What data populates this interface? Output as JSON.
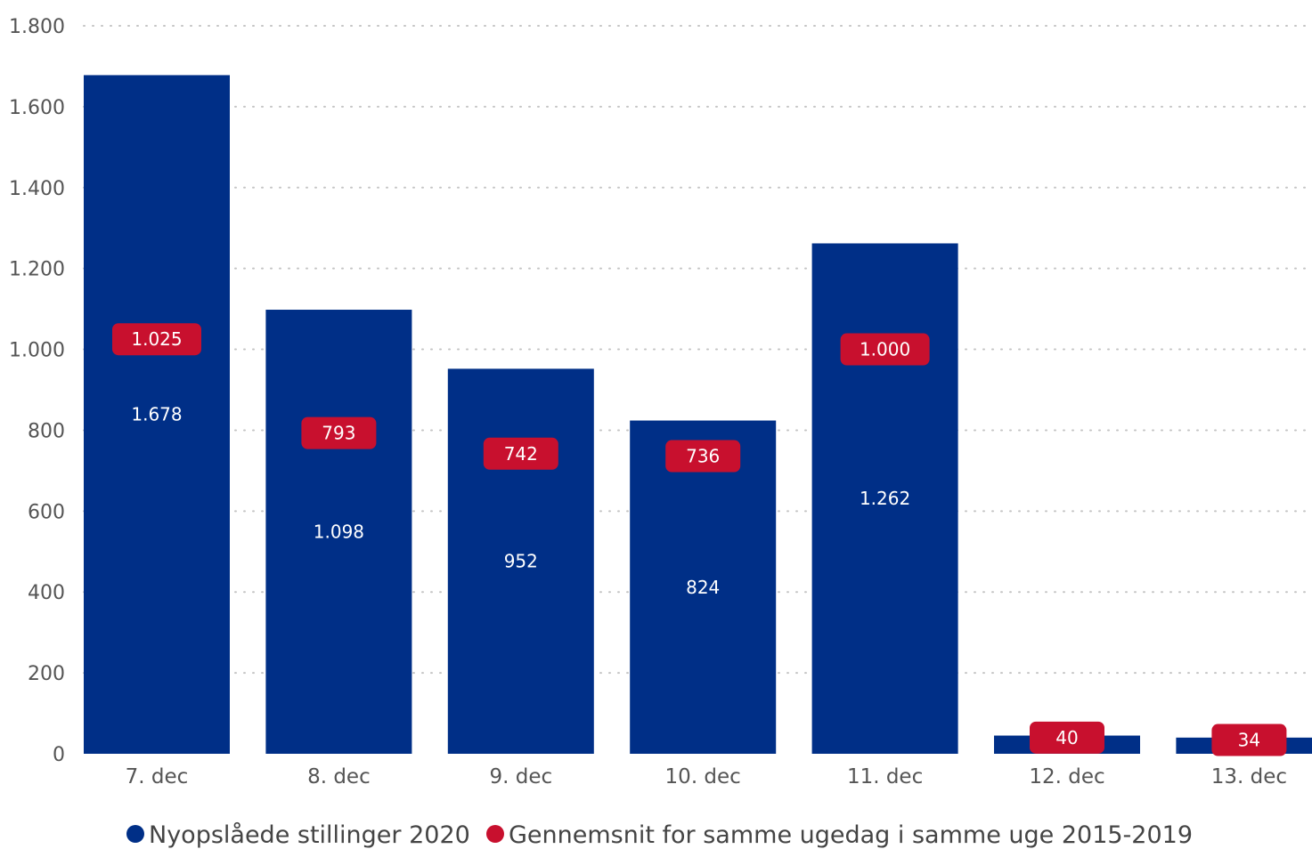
{
  "chart_data": {
    "type": "bar",
    "categories": [
      "7. dec",
      "8. dec",
      "9. dec",
      "10. dec",
      "11. dec",
      "12. dec",
      "13. dec"
    ],
    "series": [
      {
        "name": "Nyopslåede stillinger 2020",
        "values": [
          1678,
          1098,
          952,
          824,
          1262,
          45,
          40
        ],
        "labels": [
          "1.678",
          "1.098",
          "952",
          "824",
          "1.262",
          "",
          ""
        ],
        "color": "#002F87"
      },
      {
        "name": "Gennemsnit for samme ugedag i samme uge 2015-2019",
        "values": [
          1025,
          793,
          742,
          736,
          1000,
          40,
          34
        ],
        "labels": [
          "1.025",
          "793",
          "742",
          "736",
          "1.000",
          "40",
          "34"
        ],
        "color": "#C8102E"
      }
    ],
    "ylim": [
      0,
      1800
    ],
    "yticks": [
      0,
      200,
      400,
      600,
      800,
      1000,
      1200,
      1400,
      1600,
      1800
    ],
    "ytick_labels": [
      "0",
      "200",
      "400",
      "600",
      "800",
      "1.000",
      "1.200",
      "1.400",
      "1.600",
      "1.800"
    ],
    "grid": true,
    "legend": "bottom",
    "title": "",
    "xlabel": "",
    "ylabel": ""
  }
}
